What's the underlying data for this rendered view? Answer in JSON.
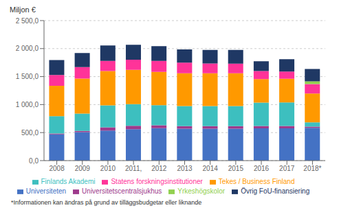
{
  "chart_data": {
    "type": "bar",
    "stacked": true,
    "grid": true,
    "legend": "bottom",
    "ylabel": "Miljon €",
    "footnote": "*Informationen kan ändras på grund av tilläggsbudgetar eller liknande",
    "categories": [
      "2008",
      "2009",
      "2010",
      "2011,",
      "2012",
      "2013",
      "2014",
      "2015",
      "2016",
      "2017",
      "2018*"
    ],
    "series": [
      {
        "name": "Universiteten",
        "color": "#4472C4",
        "values": [
          470,
          510,
          535,
          560,
          580,
          570,
          570,
          570,
          575,
          575,
          585
        ]
      },
      {
        "name": "Universitetscentralsjukhus",
        "color": "#9E3A8C",
        "values": [
          15,
          20,
          60,
          62,
          50,
          45,
          45,
          45,
          45,
          45,
          22
        ]
      },
      {
        "name": "Finlands Akademi",
        "color": "#3DBFBF",
        "values": [
          310,
          310,
          390,
          385,
          360,
          360,
          360,
          360,
          415,
          420,
          75
        ]
      },
      {
        "name": "Tekes / Business Finland",
        "color": "#FF9900",
        "values": [
          540,
          625,
          615,
          615,
          595,
          585,
          585,
          585,
          420,
          420,
          515
        ]
      },
      {
        "name": "Statens forskningsinstitutioner",
        "color": "#FF3399",
        "values": [
          195,
          205,
          180,
          180,
          195,
          190,
          175,
          170,
          145,
          130,
          170
        ]
      },
      {
        "name": "Yrkeshögskolor",
        "color": "#92D050",
        "values": [
          0,
          0,
          0,
          0,
          0,
          0,
          0,
          0,
          0,
          0,
          48
        ]
      },
      {
        "name": "Övrig FoU-finansiering",
        "color": "#1F3864",
        "values": [
          265,
          250,
          275,
          265,
          265,
          235,
          240,
          245,
          175,
          220,
          220
        ]
      }
    ],
    "ylim": [
      0,
      2500
    ],
    "yticks": [
      {
        "value": 0,
        "label": "0,0"
      },
      {
        "value": 500,
        "label": "500,0"
      },
      {
        "value": 1000,
        "label": "1 000,0"
      },
      {
        "value": 1500,
        "label": "1 500,0"
      },
      {
        "value": 2000,
        "label": "2 000,0"
      },
      {
        "value": 2500,
        "label": "2 500,0"
      }
    ]
  }
}
